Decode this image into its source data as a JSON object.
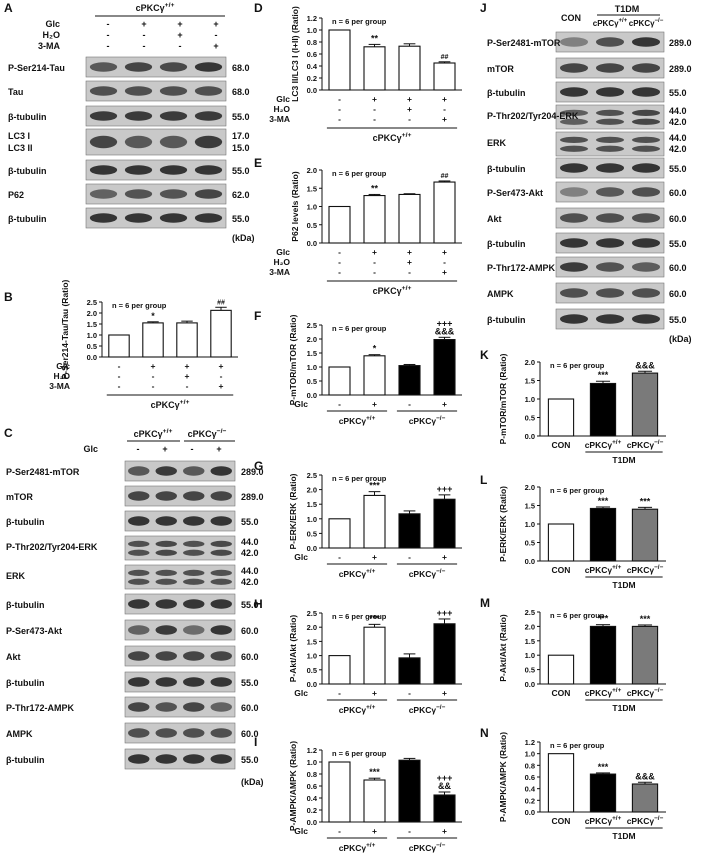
{
  "panels": {
    "A": {
      "letter": "A",
      "genotype": "cPKCγ+/+",
      "treatments": [
        {
          "name": "Glc",
          "signs": [
            "-",
            "+",
            "+",
            "+"
          ]
        },
        {
          "name": "H₂O",
          "signs": [
            "-",
            "-",
            "+",
            "-"
          ]
        },
        {
          "name": "3-MA",
          "signs": [
            "-",
            "-",
            "-",
            "+"
          ]
        }
      ],
      "blots": [
        {
          "label": "P-Ser214-Tau",
          "kda": "68.0"
        },
        {
          "label": "Tau",
          "kda": "68.0"
        },
        {
          "label": "β-tubulin",
          "kda": "55.0"
        },
        {
          "label": "LC3 I",
          "kda": "17.0",
          "label2": "LC3 II",
          "kda2": "15.0"
        },
        {
          "label": "β-tubulin",
          "kda": "55.0"
        },
        {
          "label": "P62",
          "kda": "62.0"
        },
        {
          "label": "β-tubulin",
          "kda": "55.0"
        }
      ],
      "unit": "(kDa)"
    },
    "B": {
      "letter": "B"
    },
    "C": {
      "letter": "C",
      "genotypes": [
        "cPKCγ+/+",
        "cPKCγ−/−"
      ],
      "treatment": "Glc",
      "signs": [
        "-",
        "+",
        "-",
        "+"
      ],
      "blots": [
        {
          "label": "P-Ser2481-mTOR",
          "kda": "289.0"
        },
        {
          "label": "mTOR",
          "kda": "289.0"
        },
        {
          "label": "β-tubulin",
          "kda": "55.0"
        },
        {
          "label": "P-Thr202/Tyr204-ERK",
          "kda": "44.0",
          "kda2": "42.0"
        },
        {
          "label": "ERK",
          "kda": "44.0",
          "kda2": "42.0"
        },
        {
          "label": "β-tubulin",
          "kda": "55.0"
        },
        {
          "label": "P-Ser473-Akt",
          "kda": "60.0"
        },
        {
          "label": "Akt",
          "kda": "60.0"
        },
        {
          "label": "β-tubulin",
          "kda": "55.0"
        },
        {
          "label": "P-Thr172-AMPK",
          "kda": "60.0"
        },
        {
          "label": "AMPK",
          "kda": "60.0"
        },
        {
          "label": "β-tubulin",
          "kda": "55.0"
        }
      ],
      "unit": "(kDa)"
    },
    "D": {
      "letter": "D"
    },
    "E": {
      "letter": "E"
    },
    "F": {
      "letter": "F"
    },
    "G": {
      "letter": "G"
    },
    "H": {
      "letter": "H"
    },
    "I": {
      "letter": "I"
    },
    "J": {
      "letter": "J",
      "groups": [
        "CON",
        "cPKCγ+/+",
        "cPKCγ−/−"
      ],
      "bracket": "T1DM",
      "blots": [
        {
          "label": "P-Ser2481-mTOR",
          "kda": "289.0"
        },
        {
          "label": "mTOR",
          "kda": "289.0"
        },
        {
          "label": "β-tubulin",
          "kda": "55.0"
        },
        {
          "label": "P-Thr202/Tyr204-ERK",
          "kda": "44.0",
          "kda2": "42.0"
        },
        {
          "label": "ERK",
          "kda": "44.0",
          "kda2": "42.0"
        },
        {
          "label": "β-tubulin",
          "kda": "55.0"
        },
        {
          "label": "P-Ser473-Akt",
          "kda": "60.0"
        },
        {
          "label": "Akt",
          "kda": "60.0"
        },
        {
          "label": "β-tubulin",
          "kda": "55.0"
        },
        {
          "label": "P-Thr172-AMPK",
          "kda": "60.0"
        },
        {
          "label": "AMPK",
          "kda": "60.0"
        },
        {
          "label": "β-tubulin",
          "kda": "55.0"
        }
      ],
      "unit": "(kDa)"
    },
    "K": {
      "letter": "K"
    },
    "L": {
      "letter": "L"
    },
    "M": {
      "letter": "M"
    },
    "N": {
      "letter": "N"
    }
  },
  "chart_data": [
    {
      "id": "B",
      "type": "bar",
      "ylabel": "P-Ser214-Tau/Tau (Ratio)",
      "ylim": [
        0,
        2.5
      ],
      "ticks": [
        "0.0",
        "0.5",
        "1.0",
        "1.5",
        "2.0",
        "2.5"
      ],
      "note": "n = 6 per group",
      "values": [
        1.0,
        1.55,
        1.55,
        2.12
      ],
      "errors": [
        0,
        0.05,
        0.08,
        0.14
      ],
      "fills": [
        "w",
        "w",
        "w",
        "w"
      ],
      "annotations": [
        "",
        "*",
        "",
        "##"
      ],
      "x_design": "treat",
      "treatments": [
        {
          "name": "Glc",
          "signs": [
            "-",
            "+",
            "+",
            "+"
          ]
        },
        {
          "name": "H₂O",
          "signs": [
            "-",
            "-",
            "+",
            "-"
          ]
        },
        {
          "name": "3-MA",
          "signs": [
            "-",
            "-",
            "-",
            "+"
          ]
        }
      ],
      "group_label": "cPKCγ+/+"
    },
    {
      "id": "D",
      "type": "bar",
      "ylabel": "LC3 II/LC3 I (I+II) (Ratio)",
      "ylim": [
        0,
        1.2
      ],
      "ticks": [
        "0.0",
        "0.2",
        "0.4",
        "0.6",
        "0.8",
        "1.0",
        "1.2"
      ],
      "note": "n = 6 per group",
      "values": [
        1.0,
        0.72,
        0.73,
        0.45
      ],
      "errors": [
        0,
        0.04,
        0.04,
        0.02
      ],
      "fills": [
        "w",
        "w",
        "w",
        "w"
      ],
      "annotations": [
        "",
        "**",
        "",
        "##"
      ],
      "x_design": "treat",
      "treatments": [
        {
          "name": "Glc",
          "signs": [
            "-",
            "+",
            "+",
            "+"
          ]
        },
        {
          "name": "H₂O",
          "signs": [
            "-",
            "-",
            "+",
            "-"
          ]
        },
        {
          "name": "3-MA",
          "signs": [
            "-",
            "-",
            "-",
            "+"
          ]
        }
      ],
      "group_label": "cPKCγ+/+"
    },
    {
      "id": "E",
      "type": "bar",
      "ylabel": "P62 levels (Ratio)",
      "ylim": [
        0,
        2.0
      ],
      "ticks": [
        "0.0",
        "0.5",
        "1.0",
        "1.5",
        "2.0"
      ],
      "note": "n = 6 per group",
      "values": [
        1.0,
        1.3,
        1.33,
        1.67
      ],
      "errors": [
        0,
        0.03,
        0.02,
        0.03
      ],
      "fills": [
        "w",
        "w",
        "w",
        "w"
      ],
      "annotations": [
        "",
        "**",
        "",
        "##"
      ],
      "x_design": "treat",
      "treatments": [
        {
          "name": "Glc",
          "signs": [
            "-",
            "+",
            "+",
            "+"
          ]
        },
        {
          "name": "H₂O",
          "signs": [
            "-",
            "-",
            "+",
            "-"
          ]
        },
        {
          "name": "3-MA",
          "signs": [
            "-",
            "-",
            "-",
            "+"
          ]
        }
      ],
      "group_label": "cPKCγ+/+"
    },
    {
      "id": "F",
      "type": "bar",
      "ylabel": "P-mTOR/mTOR (Ratio)",
      "ylim": [
        0,
        2.5
      ],
      "ticks": [
        "0.0",
        "0.5",
        "1.0",
        "1.5",
        "2.0",
        "2.5"
      ],
      "note": "n = 6 per group",
      "values": [
        1.0,
        1.4,
        1.05,
        1.98
      ],
      "errors": [
        0,
        0.04,
        0.04,
        0.08
      ],
      "fills": [
        "w",
        "w",
        "k",
        "k"
      ],
      "annotations": [
        "",
        "*",
        "",
        "+++\n&&&"
      ],
      "x_design": "geno",
      "glc": [
        "-",
        "+",
        "-",
        "+"
      ],
      "genotypes": [
        "cPKCγ+/+",
        "cPKCγ−/−"
      ]
    },
    {
      "id": "G",
      "type": "bar",
      "ylabel": "P-ERK/ERK (Ratio)",
      "ylim": [
        0,
        2.5
      ],
      "ticks": [
        "0.0",
        "0.5",
        "1.0",
        "1.5",
        "2.0",
        "2.5"
      ],
      "note": "n = 6 per group",
      "values": [
        1.0,
        1.8,
        1.17,
        1.67
      ],
      "errors": [
        0,
        0.13,
        0.1,
        0.15
      ],
      "fills": [
        "w",
        "w",
        "k",
        "k"
      ],
      "annotations": [
        "",
        "***",
        "",
        "+++"
      ],
      "x_design": "geno",
      "glc": [
        "-",
        "+",
        "-",
        "+"
      ],
      "genotypes": [
        "cPKCγ+/+",
        "cPKCγ−/−"
      ]
    },
    {
      "id": "H",
      "type": "bar",
      "ylabel": "P-Akt/Akt (Ratio)",
      "ylim": [
        0,
        2.5
      ],
      "ticks": [
        "0.0",
        "0.5",
        "1.0",
        "1.5",
        "2.0",
        "2.5"
      ],
      "note": "n = 6 per group",
      "values": [
        1.0,
        2.0,
        0.92,
        2.12
      ],
      "errors": [
        0,
        0.1,
        0.14,
        0.17
      ],
      "fills": [
        "w",
        "w",
        "k",
        "k"
      ],
      "annotations": [
        "",
        "***",
        "",
        "+++"
      ],
      "x_design": "geno",
      "glc": [
        "-",
        "+",
        "-",
        "+"
      ],
      "genotypes": [
        "cPKCγ+/+",
        "cPKCγ−/−"
      ]
    },
    {
      "id": "I",
      "type": "bar",
      "ylabel": "P-AMPK/AMPK (Ratio)",
      "ylim": [
        0,
        1.2
      ],
      "ticks": [
        "0.0",
        "0.2",
        "0.4",
        "0.6",
        "0.8",
        "1.0",
        "1.2"
      ],
      "note": "n = 6 per group",
      "values": [
        1.0,
        0.7,
        1.03,
        0.45
      ],
      "errors": [
        0,
        0.03,
        0.03,
        0.05
      ],
      "fills": [
        "w",
        "w",
        "k",
        "k"
      ],
      "annotations": [
        "",
        "***",
        "",
        "+++\n&&"
      ],
      "x_design": "geno",
      "glc": [
        "-",
        "+",
        "-",
        "+"
      ],
      "genotypes": [
        "cPKCγ+/+",
        "cPKCγ−/−"
      ]
    },
    {
      "id": "K",
      "type": "bar",
      "ylabel": "P-mTOR/mTOR (Ratio)",
      "ylim": [
        0,
        2.0
      ],
      "ticks": [
        "0.0",
        "0.5",
        "1.0",
        "1.5",
        "2.0"
      ],
      "note": "n = 6 per group",
      "values": [
        1.0,
        1.42,
        1.7
      ],
      "errors": [
        0,
        0.06,
        0.05
      ],
      "fills": [
        "w",
        "k",
        "g"
      ],
      "annotations": [
        "",
        "***",
        "&&&"
      ],
      "x_design": "t1dm",
      "groups": [
        "CON",
        "cPKCγ+/+",
        "cPKCγ−/−"
      ],
      "bracket": "T1DM"
    },
    {
      "id": "L",
      "type": "bar",
      "ylabel": "P-ERK/ERK (Ratio)",
      "ylim": [
        0,
        2.0
      ],
      "ticks": [
        "0.0",
        "0.5",
        "1.0",
        "1.5",
        "2.0"
      ],
      "note": "n = 6 per group",
      "values": [
        1.0,
        1.42,
        1.4
      ],
      "errors": [
        0,
        0.04,
        0.05
      ],
      "fills": [
        "w",
        "k",
        "g"
      ],
      "annotations": [
        "",
        "***",
        "***"
      ],
      "x_design": "t1dm",
      "groups": [
        "CON",
        "cPKCγ+/+",
        "cPKCγ−/−"
      ],
      "bracket": "T1DM"
    },
    {
      "id": "M",
      "type": "bar",
      "ylabel": "P-Akt/Akt (Ratio)",
      "ylim": [
        0,
        2.5
      ],
      "ticks": [
        "0.0",
        "0.5",
        "1.0",
        "1.5",
        "2.0",
        "2.5"
      ],
      "note": "n = 6 per group",
      "values": [
        1.0,
        2.0,
        2.0
      ],
      "errors": [
        0,
        0.06,
        0.05
      ],
      "fills": [
        "w",
        "k",
        "g"
      ],
      "annotations": [
        "",
        "***",
        "***"
      ],
      "x_design": "t1dm",
      "groups": [
        "CON",
        "cPKCγ+/+",
        "cPKCγ−/−"
      ],
      "bracket": "T1DM"
    },
    {
      "id": "N",
      "type": "bar",
      "ylabel": "P-AMPK/AMPK (Ratio)",
      "ylim": [
        0,
        1.2
      ],
      "ticks": [
        "0.0",
        "0.2",
        "0.4",
        "0.6",
        "0.8",
        "1.0",
        "1.2"
      ],
      "note": "n = 6 per group",
      "values": [
        1.0,
        0.65,
        0.48
      ],
      "errors": [
        0,
        0.02,
        0.03
      ],
      "fills": [
        "w",
        "k",
        "g"
      ],
      "annotations": [
        "",
        "***",
        "&&&"
      ],
      "x_design": "t1dm",
      "groups": [
        "CON",
        "cPKCγ+/+",
        "cPKCγ−/−"
      ],
      "bracket": "T1DM"
    }
  ]
}
